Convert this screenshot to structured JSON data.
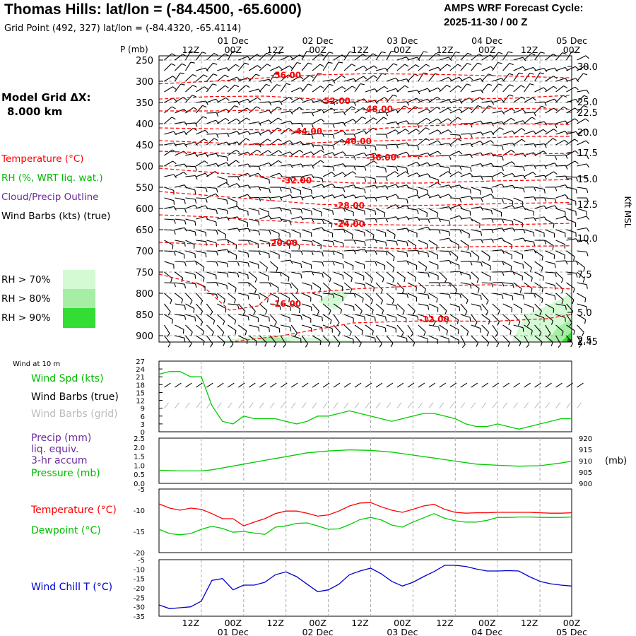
{
  "header": {
    "title": "Thomas Hills:  lat/lon = (-84.4500, -65.6000)",
    "grid_point": "Grid Point (492, 327) lat/lon = (-84.4320, -65.4114)",
    "cycle_label": "AMPS WRF Forecast Cycle:",
    "cycle_value": "2025-11-30 / 00  Z"
  },
  "time_axis": {
    "hour_labels": [
      "12Z",
      "00Z",
      "12Z",
      "00Z",
      "12Z",
      "00Z",
      "12Z",
      "00Z",
      "12Z",
      "00Z"
    ],
    "day_labels": [
      "01 Dec",
      "02 Dec",
      "03 Dec",
      "04 Dec",
      "05 Dec"
    ]
  },
  "left_legend": {
    "model_grid_label": "Model Grid ΔX:",
    "model_grid_value": "8.000 km",
    "temperature": "Temperature (°C)",
    "rh": "RH (%, WRT liq. wat.)",
    "cloud": "Cloud/Precip Outline",
    "wind": "Wind Barbs (kts) (true)",
    "rh_levels": [
      "RH > 70%",
      "RH > 80%",
      "RH > 90%"
    ]
  },
  "colors": {
    "temperature": "#ff0000",
    "dewpoint": "#00cc00",
    "wind_chill": "#0000cc",
    "cloud": "#6a2b9e",
    "rh70": "#d4fad4",
    "rh80": "#a6eea6",
    "rh90": "#33dd33",
    "grid": "#aaaaaa"
  },
  "chart_data": [
    {
      "type": "line",
      "name": "cross-section",
      "title": "Time-height cross-section",
      "y_axis_title": "P (mb)",
      "y_ticks": [
        250,
        300,
        350,
        400,
        450,
        500,
        550,
        600,
        650,
        700,
        750,
        800,
        850,
        900
      ],
      "ylim": [
        915,
        240
      ],
      "right_axis_title": "Kft MSL",
      "right_ticks": [
        {
          "label": "30.0",
          "p": 265
        },
        {
          "label": "25.0",
          "p": 348
        },
        {
          "label": "22.5",
          "p": 373
        },
        {
          "label": "20.0",
          "p": 420
        },
        {
          "label": "17.5",
          "p": 468
        },
        {
          "label": "15.0",
          "p": 530
        },
        {
          "label": "12.5",
          "p": 590
        },
        {
          "label": "10.0",
          "p": 670
        },
        {
          "label": "7.5",
          "p": 755
        },
        {
          "label": "5.0",
          "p": 845
        },
        {
          "label": "2.45",
          "p": 913
        },
        {
          "label": "2.5",
          "p": 910
        }
      ],
      "xlim": [
        0,
        117
      ],
      "isotherms": [
        {
          "label": "-56.00",
          "label_at": [
            36,
            286
          ],
          "points": [
            [
              0,
              306
            ],
            [
              15,
              300
            ],
            [
              30,
              292
            ],
            [
              45,
              285
            ],
            [
              60,
              282
            ],
            [
              80,
              284
            ],
            [
              100,
              288
            ],
            [
              117,
              292
            ]
          ]
        },
        {
          "label": "-52.00",
          "label_at": [
            50,
            347
          ],
          "points": [
            [
              0,
              342
            ],
            [
              15,
              336
            ],
            [
              30,
              335
            ],
            [
              45,
              342
            ],
            [
              60,
              345
            ],
            [
              80,
              343
            ],
            [
              100,
              340
            ],
            [
              117,
              333
            ]
          ]
        },
        {
          "label": "-48.00",
          "label_at": [
            62,
            366
          ],
          "points": [
            [
              0,
              370
            ],
            [
              15,
              370
            ],
            [
              30,
              368
            ],
            [
              45,
              366
            ],
            [
              60,
              367
            ],
            [
              80,
              362
            ],
            [
              100,
              364
            ],
            [
              117,
              366
            ]
          ]
        },
        {
          "label": "-44.00",
          "label_at": [
            42,
            418
          ],
          "points": [
            [
              0,
              410
            ],
            [
              15,
              412
            ],
            [
              30,
              415
            ],
            [
              42,
              418
            ],
            [
              55,
              415
            ],
            [
              75,
              405
            ],
            [
              95,
              400
            ],
            [
              117,
              402
            ]
          ]
        },
        {
          "label": "-40.00",
          "label_at": [
            56,
            442
          ],
          "points": [
            [
              0,
              440
            ],
            [
              15,
              445
            ],
            [
              30,
              450
            ],
            [
              50,
              443
            ],
            [
              65,
              440
            ],
            [
              85,
              435
            ],
            [
              105,
              430
            ],
            [
              117,
              430
            ]
          ]
        },
        {
          "label": "-36.00",
          "label_at": [
            63,
            480
          ],
          "points": [
            [
              0,
              465
            ],
            [
              20,
              470
            ],
            [
              40,
              478
            ],
            [
              60,
              480
            ],
            [
              80,
              476
            ],
            [
              100,
              472
            ],
            [
              117,
              470
            ]
          ]
        },
        {
          "label": "-32.00",
          "label_at": [
            39,
            534
          ],
          "points": [
            [
              0,
              505
            ],
            [
              15,
              515
            ],
            [
              30,
              525
            ],
            [
              40,
              534
            ],
            [
              55,
              540
            ],
            [
              75,
              540
            ],
            [
              95,
              535
            ],
            [
              117,
              532
            ]
          ]
        },
        {
          "label": "-28.00",
          "label_at": [
            54,
            593
          ],
          "points": [
            [
              0,
              560
            ],
            [
              15,
              570
            ],
            [
              30,
              580
            ],
            [
              45,
              590
            ],
            [
              60,
              594
            ],
            [
              80,
              592
            ],
            [
              100,
              588
            ],
            [
              117,
              586
            ]
          ]
        },
        {
          "label": "-24.00",
          "label_at": [
            54,
            637
          ],
          "points": [
            [
              0,
              615
            ],
            [
              15,
              620
            ],
            [
              30,
              628
            ],
            [
              45,
              635
            ],
            [
              60,
              638
            ],
            [
              80,
              640
            ],
            [
              100,
              638
            ],
            [
              117,
              635
            ]
          ]
        },
        {
          "label": "-20.00",
          "label_at": [
            35,
            682
          ],
          "points": [
            [
              0,
              680
            ],
            [
              15,
              685
            ],
            [
              25,
              684
            ],
            [
              35,
              682
            ],
            [
              50,
              690
            ],
            [
              70,
              695
            ],
            [
              90,
              690
            ],
            [
              117,
              688
            ]
          ]
        },
        {
          "label": "-16.00",
          "label_at": [
            36,
            825
          ],
          "points": [
            [
              0,
              755
            ],
            [
              12,
              780
            ],
            [
              20,
              840
            ],
            [
              28,
              830
            ],
            [
              32,
              800
            ],
            [
              40,
              800
            ],
            [
              55,
              790
            ],
            [
              75,
              782
            ],
            [
              95,
              780
            ],
            [
              117,
              790
            ]
          ]
        },
        {
          "label": "-12.00",
          "label_at": [
            78,
            862
          ],
          "points": [
            [
              20,
              915
            ],
            [
              35,
              900
            ],
            [
              55,
              870
            ],
            [
              75,
              865
            ],
            [
              95,
              866
            ],
            [
              110,
              860
            ],
            [
              117,
              850
            ]
          ]
        }
      ],
      "rh_areas": [
        {
          "level": 70,
          "points": [
            [
              15,
              915
            ],
            [
              28,
              900
            ],
            [
              45,
              905
            ],
            [
              60,
              915
            ]
          ]
        },
        {
          "level": 70,
          "points": [
            [
              45,
              820
            ],
            [
              50,
              790
            ],
            [
              54,
              800
            ],
            [
              50,
              840
            ]
          ]
        },
        {
          "level": 70,
          "points": [
            [
              100,
              915
            ],
            [
              104,
              850
            ],
            [
              110,
              830
            ],
            [
              117,
              800
            ],
            [
              117,
              915
            ]
          ]
        },
        {
          "level": 80,
          "points": [
            [
              28,
              915
            ],
            [
              32,
              900
            ],
            [
              38,
              915
            ]
          ]
        },
        {
          "level": 80,
          "points": [
            [
              110,
              915
            ],
            [
              113,
              880
            ],
            [
              117,
              860
            ],
            [
              117,
              915
            ]
          ]
        },
        {
          "level": 90,
          "points": [
            [
              114,
              915
            ],
            [
              117,
              890
            ],
            [
              117,
              915
            ]
          ]
        }
      ]
    },
    {
      "type": "line",
      "name": "wind-10m",
      "title": "Wind at 10 m",
      "series_labels": [
        "Wind Spd (kts)",
        "Wind Barbs (true)",
        "Wind Barbs (grid)"
      ],
      "y_ticks": [
        0,
        3,
        6,
        9,
        12,
        15,
        18,
        21,
        24,
        27
      ],
      "ylim": [
        0,
        27
      ],
      "x": [
        0,
        3,
        6,
        9,
        12,
        15,
        18,
        21,
        24,
        27,
        30,
        33,
        36,
        39,
        42,
        45,
        48,
        51,
        54,
        57,
        60,
        63,
        66,
        69,
        72,
        75,
        78,
        81,
        84,
        87,
        90,
        93,
        96,
        99,
        102,
        105,
        108,
        111,
        114,
        117
      ],
      "values": [
        22,
        23,
        23,
        21,
        21,
        10,
        4,
        3,
        6,
        5,
        5,
        5,
        4,
        3,
        4,
        6,
        6,
        7,
        8,
        7,
        6,
        5,
        4,
        5,
        6,
        7,
        7,
        6,
        5,
        3,
        2,
        2,
        3,
        2,
        1,
        2,
        3,
        4,
        5,
        5
      ]
    },
    {
      "type": "line",
      "name": "precip-pressure",
      "series_labels": [
        "Precip (mm)",
        "liq. equiv.",
        "3-hr accum",
        "Pressure (mb)"
      ],
      "left_ticks": [
        "0.0",
        "0.5",
        "1.0",
        "1.5",
        "2.0",
        "2.5"
      ],
      "right_ticks": [
        "900",
        "905",
        "910",
        "915",
        "920"
      ],
      "right_unit": "(mb)",
      "ylim": [
        900,
        920
      ],
      "x": [
        0,
        6,
        12,
        15,
        18,
        24,
        30,
        36,
        42,
        48,
        54,
        60,
        66,
        72,
        78,
        84,
        90,
        96,
        102,
        108,
        114,
        117
      ],
      "values": [
        905.8,
        905.5,
        905.5,
        906,
        906.8,
        908.5,
        910.2,
        911.8,
        913.5,
        914.3,
        914.8,
        914.6,
        913.8,
        912.5,
        911.2,
        909.8,
        908.5,
        908.0,
        907.6,
        907.8,
        909.0,
        909.8
      ],
      "precip": []
    },
    {
      "type": "line",
      "name": "temp-dewpoint",
      "series_labels": [
        "Temperature (°C)",
        "Dewpoint (°C)"
      ],
      "y_ticks": [
        -5,
        -10,
        -15,
        -20
      ],
      "ylim": [
        -20,
        -5
      ],
      "x": [
        0,
        3,
        6,
        9,
        12,
        15,
        18,
        21,
        24,
        27,
        30,
        33,
        36,
        39,
        42,
        45,
        48,
        51,
        54,
        57,
        60,
        63,
        66,
        69,
        72,
        75,
        78,
        81,
        84,
        87,
        90,
        93,
        96,
        99,
        102,
        105,
        108,
        111,
        114,
        117
      ],
      "series": [
        {
          "name": "Temperature",
          "values": [
            -8.5,
            -9.5,
            -10,
            -9.5,
            -9.8,
            -10.8,
            -12,
            -12,
            -13.7,
            -12.8,
            -12,
            -10.8,
            -10.2,
            -10.2,
            -10.7,
            -11.4,
            -11.1,
            -10.2,
            -9,
            -8.3,
            -8.2,
            -9.2,
            -10,
            -10.5,
            -9.8,
            -9,
            -8.6,
            -9.8,
            -10.5,
            -10.7,
            -10.6,
            -10.6,
            -10.5,
            -10.5,
            -10.5,
            -10.5,
            -10.6,
            -10.7,
            -10.7,
            -10.6
          ]
        },
        {
          "name": "Dewpoint",
          "values": [
            -14.5,
            -15.5,
            -15.8,
            -15.5,
            -14.5,
            -13.8,
            -14.3,
            -15.2,
            -15,
            -15.4,
            -15.7,
            -14,
            -13.7,
            -13.1,
            -13,
            -13.7,
            -14.5,
            -14.4,
            -13.4,
            -12.2,
            -11.7,
            -12.3,
            -13.5,
            -14,
            -12.8,
            -11.8,
            -10.8,
            -11.9,
            -12.5,
            -12.8,
            -12.8,
            -12.4,
            -11.7,
            -11.7,
            -11.6,
            -11.6,
            -11.7,
            -11.7,
            -11.7,
            -11.6
          ]
        }
      ]
    },
    {
      "type": "line",
      "name": "wind-chill",
      "series_labels": [
        "Wind Chill T (°C)"
      ],
      "y_ticks": [
        -5,
        -10,
        -15,
        -20,
        -25,
        -30,
        -35
      ],
      "ylim": [
        -35,
        -5
      ],
      "x": [
        0,
        3,
        6,
        9,
        12,
        15,
        18,
        21,
        24,
        27,
        30,
        33,
        36,
        39,
        42,
        45,
        48,
        51,
        54,
        57,
        60,
        63,
        66,
        69,
        72,
        75,
        78,
        81,
        84,
        87,
        90,
        93,
        96,
        99,
        102,
        105,
        108,
        111,
        114,
        117
      ],
      "values": [
        -29,
        -31,
        -30.5,
        -30,
        -27,
        -16,
        -15,
        -21,
        -18.5,
        -18.5,
        -17,
        -13,
        -11.5,
        -14,
        -18,
        -22,
        -21,
        -18,
        -13,
        -11,
        -9.5,
        -12.5,
        -16.5,
        -19,
        -17,
        -14,
        -11.3,
        -8,
        -8,
        -8.6,
        -10,
        -11,
        -11,
        -10.8,
        -11,
        -14,
        -16.5,
        -17.8,
        -18.5,
        -19
      ]
    }
  ]
}
